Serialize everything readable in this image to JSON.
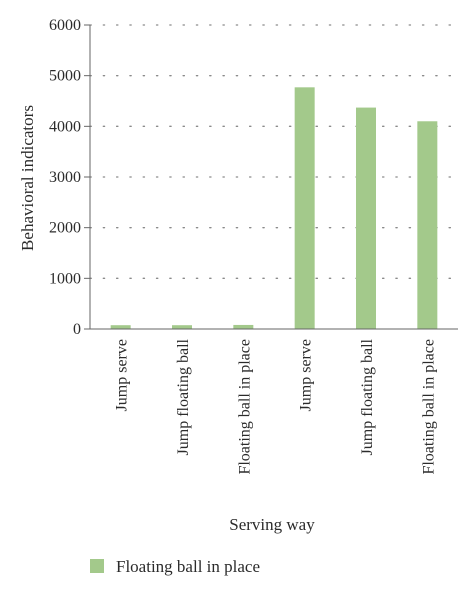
{
  "chart_data": {
    "type": "bar",
    "categories": [
      "Jump serve",
      "Jump floating ball",
      "Floating ball in place",
      "Jump serve",
      "Jump floating ball",
      "Floating ball in place"
    ],
    "series": [
      {
        "name": "Floating ball in place",
        "values": [
          75,
          75,
          80,
          4770,
          4370,
          4100
        ],
        "color": "#a3c98b"
      }
    ],
    "xlabel": "Serving way",
    "ylabel": "Behavioral indicators",
    "ylim": [
      0,
      6000
    ],
    "yticks": [
      "0",
      "1000",
      "2000",
      "3000",
      "4000",
      "5000",
      "6000"
    ],
    "grid": "horizontal-dotted",
    "legend_position": "bottom-left"
  }
}
